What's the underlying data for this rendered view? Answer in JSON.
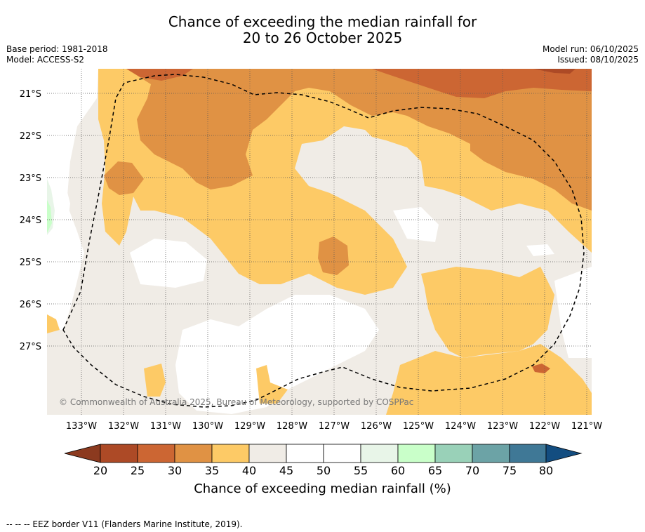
{
  "title": {
    "line1": "Chance of exceeding the median rainfall for",
    "line2": "20 to 26 October 2025"
  },
  "meta": {
    "base_period": "Base period: 1981-2018",
    "model": "Model: ACCESS-S2",
    "model_run": "Model run: 06/10/2025",
    "issued": "Issued: 08/10/2025"
  },
  "map": {
    "lat_labels": [
      "21°S",
      "22°S",
      "23°S",
      "24°S",
      "25°S",
      "26°S",
      "27°S"
    ],
    "lon_labels": [
      "133°W",
      "132°W",
      "131°W",
      "130°W",
      "129°W",
      "128°W",
      "127°W",
      "126°W",
      "125°W",
      "124°W",
      "123°W",
      "122°W",
      "121°W"
    ],
    "copyright": "© Commonwealth of Australia 2025, Bureau of Meteorology, supported by COSPPac",
    "background_color": "#f0ece6"
  },
  "colorbar": {
    "ticks": [
      "20",
      "25",
      "30",
      "35",
      "40",
      "45",
      "50",
      "55",
      "60",
      "65",
      "70",
      "75",
      "80"
    ],
    "colors": [
      "#ad4a26",
      "#cc6633",
      "#e09244",
      "#fdca66",
      "#f0ece6",
      "#ffffff",
      "#ffffff",
      "#e8f5e8",
      "#c9ffc9",
      "#99d1b8",
      "#6ca3a6",
      "#3f7896"
    ],
    "low_color": "#8c3a1f",
    "high_color": "#134d80",
    "label": "Chance of exceeding median rainfall (%)"
  },
  "footnote": "--  --  -- EEZ border V11 (Flanders Marine Institute, 2019)."
}
